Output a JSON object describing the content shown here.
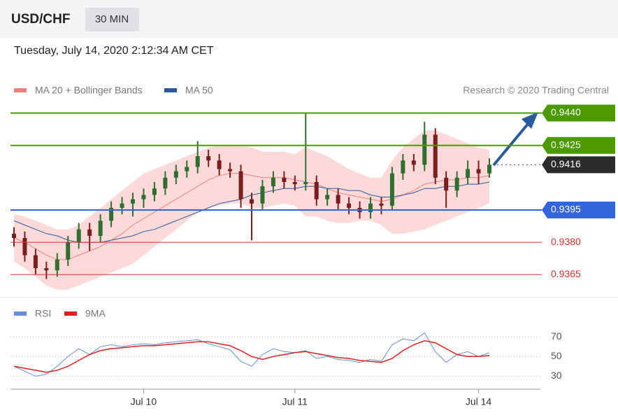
{
  "header": {
    "symbol": "USD/CHF",
    "timeframe": "30 MIN",
    "timestamp": "Tuesday, July 14, 2020 2:12:34 AM CET"
  },
  "chart_data": [
    {
      "type": "candlestick",
      "source": "Research © 2020 Trading Central",
      "ylim": [
        0.9356,
        0.9447
      ],
      "up_color": "#2f6e2f",
      "down_color": "#7a1f1f",
      "open": [
        0.9384,
        0.9382,
        0.9374,
        0.9368,
        0.9367,
        0.9372,
        0.938,
        0.9386,
        0.9383,
        0.939,
        0.9396,
        0.9398,
        0.94,
        0.9402,
        0.9405,
        0.941,
        0.9413,
        0.9415,
        0.942,
        0.9418,
        0.9414,
        0.9413,
        0.94,
        0.9398,
        0.9406,
        0.941,
        0.9408,
        0.9407,
        0.9408,
        0.94,
        0.9402,
        0.9398,
        0.9396,
        0.9394,
        0.9398,
        0.9397,
        0.9412,
        0.9418,
        0.9416,
        0.943,
        0.941,
        0.9404,
        0.941,
        0.9414,
        0.9412
      ],
      "high": [
        0.9387,
        0.9385,
        0.9377,
        0.9371,
        0.9375,
        0.9383,
        0.9389,
        0.9389,
        0.9393,
        0.9399,
        0.9401,
        0.9403,
        0.9405,
        0.9408,
        0.9413,
        0.9416,
        0.9418,
        0.9427,
        0.9423,
        0.9421,
        0.9417,
        0.9416,
        0.9403,
        0.9409,
        0.9413,
        0.9413,
        0.9411,
        0.944,
        0.9411,
        0.9405,
        0.9405,
        0.9401,
        0.9399,
        0.9401,
        0.9401,
        0.9415,
        0.9421,
        0.9421,
        0.9436,
        0.9433,
        0.9413,
        0.9413,
        0.9418,
        0.9418,
        0.9419
      ],
      "low": [
        0.9378,
        0.9371,
        0.9365,
        0.9363,
        0.9364,
        0.9369,
        0.9377,
        0.9376,
        0.938,
        0.9387,
        0.9393,
        0.9392,
        0.9396,
        0.9399,
        0.9402,
        0.9407,
        0.941,
        0.9412,
        0.9415,
        0.9411,
        0.941,
        0.9396,
        0.9381,
        0.9395,
        0.9403,
        0.9405,
        0.9404,
        0.9404,
        0.9397,
        0.9397,
        0.9395,
        0.9393,
        0.9391,
        0.9391,
        0.9393,
        0.9395,
        0.9409,
        0.9413,
        0.9413,
        0.9407,
        0.9396,
        0.9401,
        0.9407,
        0.9407,
        0.941
      ],
      "close": [
        0.9382,
        0.9374,
        0.9368,
        0.9367,
        0.9372,
        0.938,
        0.9386,
        0.9383,
        0.939,
        0.9396,
        0.9398,
        0.94,
        0.9402,
        0.9405,
        0.941,
        0.9413,
        0.9415,
        0.942,
        0.9418,
        0.9414,
        0.9413,
        0.94,
        0.9398,
        0.9406,
        0.941,
        0.9408,
        0.9407,
        0.9408,
        0.94,
        0.9402,
        0.9398,
        0.9396,
        0.9394,
        0.9398,
        0.9397,
        0.9412,
        0.9418,
        0.9416,
        0.943,
        0.941,
        0.9404,
        0.941,
        0.9414,
        0.9412,
        0.9416
      ],
      "series": [
        {
          "name": "MA 20 + Bollinger Bands",
          "color": "#f08080",
          "values": [
            0.9382,
            0.938,
            0.9377,
            0.9374,
            0.9372,
            0.9372,
            0.9374,
            0.9376,
            0.9378,
            0.9381,
            0.9384,
            0.9388,
            0.9391,
            0.9394,
            0.9397,
            0.94,
            0.9403,
            0.9406,
            0.9409,
            0.9411,
            0.9412,
            0.9412,
            0.9411,
            0.941,
            0.941,
            0.941,
            0.9409,
            0.9408,
            0.9407,
            0.9405,
            0.9403,
            0.9402,
            0.9401,
            0.94,
            0.9399,
            0.94,
            0.9402,
            0.9404,
            0.9407,
            0.9408,
            0.9409,
            0.9409,
            0.941,
            0.941,
            0.9411
          ]
        },
        {
          "name": "MA 50",
          "color": "#2a5a9e",
          "values": [
            0.939,
            0.9388,
            0.9386,
            0.9384,
            0.9383,
            0.9381,
            0.938,
            0.938,
            0.938,
            0.9381,
            0.9382,
            0.9383,
            0.9385,
            0.9386,
            0.9388,
            0.939,
            0.9392,
            0.9394,
            0.9396,
            0.9398,
            0.9399,
            0.94,
            0.9402,
            0.9403,
            0.9404,
            0.9405,
            0.9405,
            0.9406,
            0.9406,
            0.9405,
            0.9405,
            0.9404,
            0.9404,
            0.9402,
            0.9401,
            0.9401,
            0.9402,
            0.9403,
            0.9405,
            0.9405,
            0.9406,
            0.9406,
            0.9407,
            0.9407,
            0.9408
          ]
        }
      ],
      "bands": {
        "color": "#fcdada",
        "upper": [
          0.9393,
          0.9392,
          0.939,
          0.9388,
          0.9386,
          0.9386,
          0.9388,
          0.9392,
          0.9396,
          0.94,
          0.9404,
          0.9408,
          0.9412,
          0.9414,
          0.9416,
          0.9418,
          0.942,
          0.9422,
          0.9424,
          0.9425,
          0.9425,
          0.9425,
          0.9424,
          0.9422,
          0.9422,
          0.9422,
          0.9421,
          0.9424,
          0.9422,
          0.942,
          0.9417,
          0.9414,
          0.9412,
          0.941,
          0.941,
          0.9418,
          0.9424,
          0.9428,
          0.9432,
          0.9432,
          0.943,
          0.9428,
          0.9426,
          0.9424,
          0.9423
        ],
        "lower": [
          0.9371,
          0.9368,
          0.9364,
          0.936,
          0.9358,
          0.9358,
          0.936,
          0.9362,
          0.9364,
          0.9366,
          0.9368,
          0.937,
          0.9374,
          0.9378,
          0.9382,
          0.9386,
          0.939,
          0.9394,
          0.9396,
          0.9397,
          0.9398,
          0.9398,
          0.9396,
          0.9396,
          0.9397,
          0.9398,
          0.9397,
          0.9392,
          0.9392,
          0.939,
          0.9389,
          0.9389,
          0.939,
          0.939,
          0.9388,
          0.9384,
          0.9384,
          0.9385,
          0.9386,
          0.9388,
          0.939,
          0.9392,
          0.9394,
          0.9396,
          0.9398
        ]
      },
      "levels": [
        {
          "value": 0.944,
          "label": "0.9440",
          "color": "#4c9a00",
          "boxed": true,
          "dashed": false
        },
        {
          "value": 0.9425,
          "label": "0.9425",
          "color": "#4c9a00",
          "boxed": true,
          "dashed": false
        },
        {
          "value": 0.9416,
          "label": "0.9416",
          "color": "#2b2b2b",
          "boxed": true,
          "dashed": true
        },
        {
          "value": 0.9395,
          "label": "0.9395",
          "color": "#3366dd",
          "boxed": true,
          "dashed": false
        },
        {
          "value": 0.938,
          "label": "0.9380",
          "color": "#e03030",
          "boxed": false,
          "dashed": false
        },
        {
          "value": 0.9365,
          "label": "0.9365",
          "color": "#e03030",
          "boxed": false,
          "dashed": false
        }
      ]
    },
    {
      "type": "line",
      "ylim": [
        21,
        78
      ],
      "yticks": [
        70,
        50,
        30
      ],
      "grid": true,
      "categories": [
        null,
        null,
        null,
        null,
        null,
        null,
        null,
        null,
        null,
        null,
        null,
        null,
        "Jul 10",
        null,
        null,
        null,
        null,
        null,
        null,
        null,
        null,
        null,
        null,
        null,
        null,
        null,
        "Jul 11",
        null,
        null,
        null,
        null,
        null,
        null,
        null,
        null,
        null,
        null,
        null,
        null,
        null,
        null,
        null,
        null,
        "Jul 14",
        null
      ],
      "series": [
        {
          "name": "RSI",
          "color": "#6a8fd8",
          "values": [
            40,
            35,
            30,
            32,
            40,
            50,
            58,
            52,
            60,
            62,
            60,
            62,
            63,
            62,
            64,
            65,
            66,
            67,
            63,
            60,
            57,
            45,
            40,
            52,
            58,
            55,
            54,
            56,
            48,
            50,
            47,
            46,
            44,
            47,
            45,
            62,
            68,
            66,
            74,
            55,
            44,
            52,
            55,
            50,
            54
          ]
        },
        {
          "name": "9MA",
          "color": "#e02020",
          "values": [
            40,
            38,
            36,
            34,
            36,
            40,
            46,
            52,
            56,
            58,
            59,
            60,
            61,
            61,
            62,
            63,
            64,
            65,
            65,
            63,
            61,
            56,
            50,
            47,
            50,
            52,
            54,
            55,
            53,
            51,
            49,
            48,
            46,
            45,
            44,
            48,
            56,
            62,
            66,
            64,
            58,
            52,
            50,
            50,
            51
          ]
        }
      ]
    }
  ]
}
